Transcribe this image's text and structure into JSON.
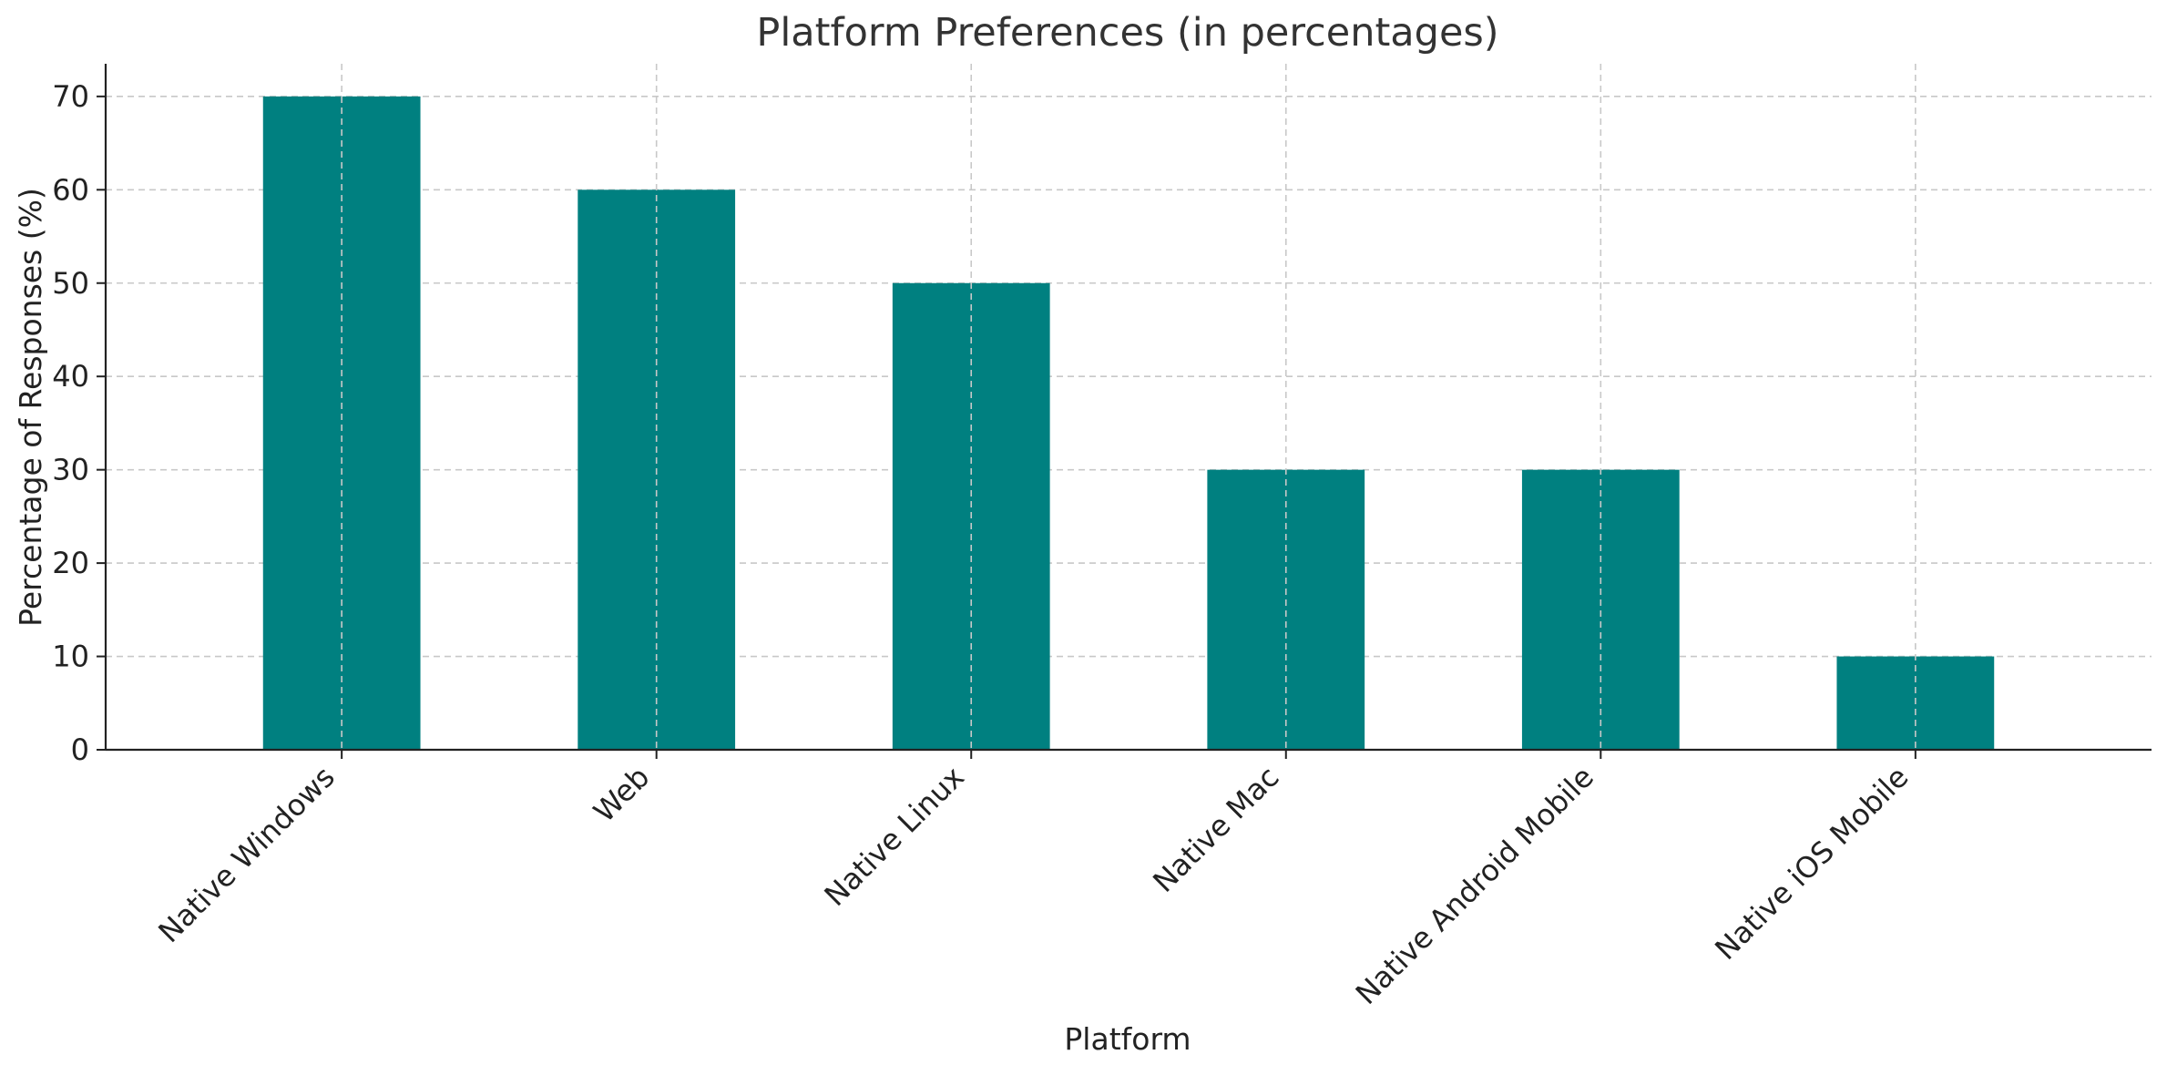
{
  "chart_data": {
    "type": "bar",
    "title": "Platform Preferences (in percentages)",
    "xlabel": "Platform",
    "ylabel": "Percentage of Responses (%)",
    "categories": [
      "Native Windows",
      "Web",
      "Native Linux",
      "Native Mac",
      "Native Android Mobile",
      "Native iOS Mobile"
    ],
    "values": [
      70,
      60,
      50,
      30,
      30,
      10
    ],
    "ylim": [
      0,
      73.5
    ],
    "yticks": [
      0,
      10,
      20,
      30,
      40,
      50,
      60,
      70
    ],
    "grid": true,
    "colors": {
      "bar": "#008080"
    }
  }
}
